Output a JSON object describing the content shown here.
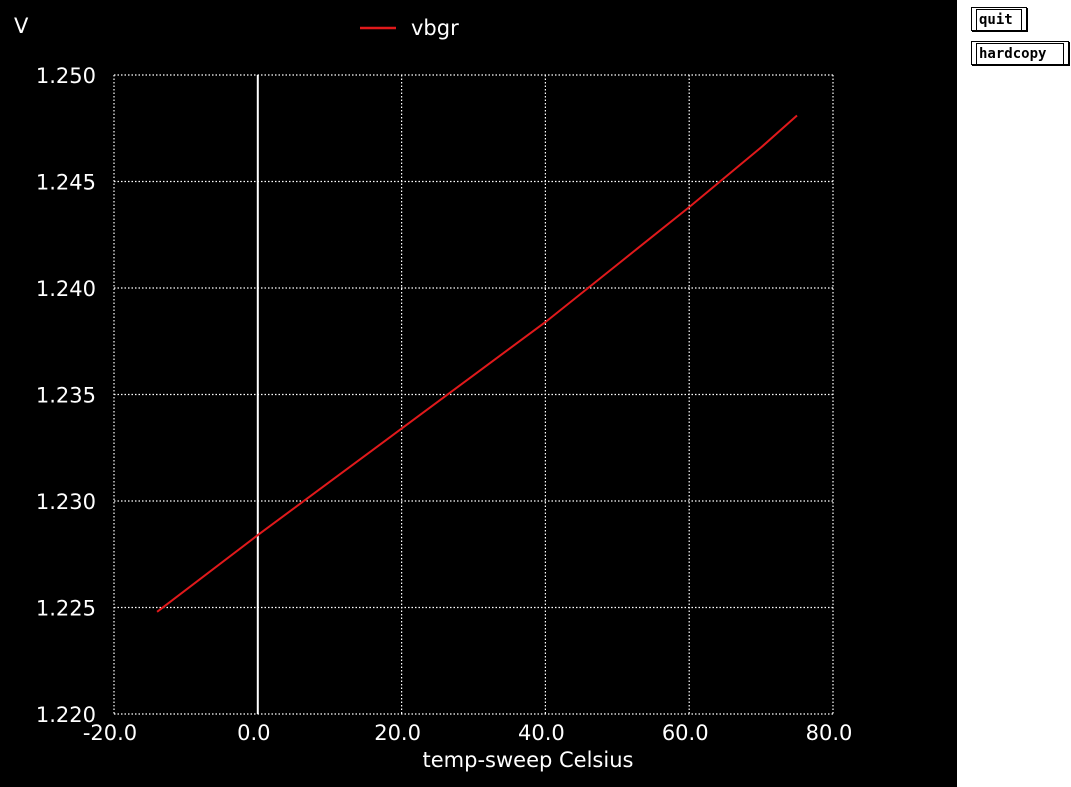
{
  "buttons": {
    "quit": "quit",
    "hardcopy": "hardcopy"
  },
  "colors": {
    "background": "#000000",
    "foreground": "#ffffff",
    "series": "#e0191b",
    "zero_line": "#ffffff",
    "panel": "#ffffff"
  },
  "chart_data": {
    "type": "line",
    "title": "",
    "ylabel": "V",
    "xlabel": "temp-sweep  Celsius",
    "xlim": [
      -20,
      80
    ],
    "ylim": [
      1.22,
      1.25
    ],
    "x_ticks": [
      -20,
      0,
      20,
      40,
      60,
      80
    ],
    "x_tick_labels": [
      "-20.0",
      "0.0",
      "20.0",
      "40.0",
      "60.0",
      "80.0"
    ],
    "y_ticks": [
      1.22,
      1.225,
      1.23,
      1.235,
      1.24,
      1.245,
      1.25
    ],
    "y_tick_labels": [
      "1.220",
      "1.225",
      "1.230",
      "1.235",
      "1.240",
      "1.245",
      "1.250"
    ],
    "grid": true,
    "legend": "top-center",
    "series": [
      {
        "name": "vbgr",
        "x": [
          -14,
          0,
          10,
          20,
          30,
          40,
          50,
          60,
          70,
          75
        ],
        "y": [
          1.2248,
          1.2284,
          1.2309,
          1.2334,
          1.2359,
          1.2384,
          1.2411,
          1.2438,
          1.2466,
          1.2481
        ]
      }
    ]
  }
}
